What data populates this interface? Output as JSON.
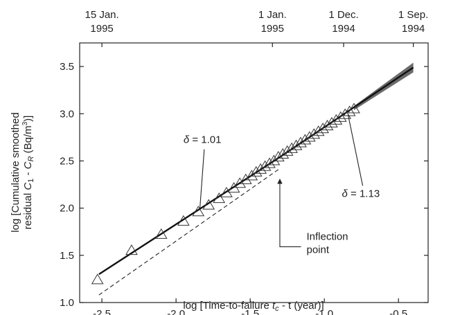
{
  "chart_data": {
    "type": "scatter",
    "xlabel": "log [Time-to-failure tᴄ - t (year)]",
    "xlabel_parts": {
      "pre": "log [Time-to-failure ",
      "t": "t",
      "c": "c",
      "post": " - t (year)]"
    },
    "ylabel_line1": "log [Cumulative smoothed",
    "ylabel_line2_parts": {
      "pre": "residual ",
      "c1": "C",
      "s1": "1",
      "mid": " - ",
      "cr": "C",
      "sr": "R",
      "post1": " (Bq/m",
      "sup": "3",
      "post2": ")]"
    },
    "xlim": [
      -2.65,
      -0.3
    ],
    "ylim": [
      1.0,
      3.75
    ],
    "x_ticks": [
      -2.5,
      -2.0,
      -1.5,
      -1.0,
      -0.5
    ],
    "x_tick_labels": [
      "-2.5",
      "-2.0",
      "-1.5",
      "-1.0",
      "-0.5"
    ],
    "y_ticks": [
      1.0,
      1.5,
      2.0,
      2.5,
      3.0,
      3.5
    ],
    "y_tick_labels": [
      "1.0",
      "1.5",
      "2.0",
      "2.5",
      "3.0",
      "3.5"
    ],
    "top_axis": [
      {
        "x": -2.5,
        "line1": "15 Jan.",
        "line2": "1995"
      },
      {
        "x": -1.35,
        "line1": "1 Jan.",
        "line2": "1995"
      },
      {
        "x": -0.87,
        "line1": "1 Dec.",
        "line2": "1994"
      },
      {
        "x": -0.4,
        "line1": "1 Sep.",
        "line2": "1994"
      }
    ],
    "series": [
      {
        "marker": "open-triangle",
        "x": [
          -2.53,
          -2.3,
          -2.1,
          -1.95,
          -1.85,
          -1.78,
          -1.71,
          -1.66,
          -1.61,
          -1.57,
          -1.53,
          -1.49,
          -1.46,
          -1.43,
          -1.4,
          -1.37,
          -1.34,
          -1.31,
          -1.28,
          -1.25,
          -1.22,
          -1.19,
          -1.16,
          -1.13,
          -1.1,
          -1.07,
          -1.04,
          -1.01,
          -0.98,
          -0.95,
          -0.92,
          -0.89,
          -0.86,
          -0.83,
          -0.8
        ],
        "y": [
          1.24,
          1.55,
          1.72,
          1.86,
          1.96,
          2.03,
          2.1,
          2.16,
          2.21,
          2.26,
          2.3,
          2.34,
          2.38,
          2.41,
          2.44,
          2.47,
          2.5,
          2.54,
          2.57,
          2.6,
          2.63,
          2.66,
          2.69,
          2.72,
          2.75,
          2.78,
          2.81,
          2.84,
          2.87,
          2.9,
          2.93,
          2.96,
          2.99,
          3.02,
          3.05
        ]
      }
    ],
    "fit_line": {
      "style": "solid-black",
      "x": [
        -2.52,
        -1.32,
        -0.4
      ],
      "y": [
        1.3,
        2.52,
        3.49
      ]
    },
    "fit_band": {
      "color": "#6b6b6b",
      "x_start": -0.8,
      "x_end": -0.4,
      "y_start": 3.06,
      "y_end": 3.49
    },
    "dashed_line": {
      "style": "dashed",
      "x": [
        -2.52,
        -1.3
      ],
      "y": [
        1.08,
        2.42
      ]
    },
    "annotations": [
      {
        "label": "δ = 1.01",
        "delta": "δ",
        "value": " = 1.01",
        "text_x": -1.95,
        "text_y": 2.69,
        "arrow_to_x": -1.84,
        "arrow_to_y": 1.98
      },
      {
        "label": "δ = 1.13",
        "delta": "δ",
        "value": " = 1.13",
        "text_x": -0.76,
        "text_y": 2.12,
        "arrow_to_x": -0.84,
        "arrow_to_y": 2.99
      },
      {
        "label_line1": "Inflection",
        "label_line2": "point",
        "text_x": -1.12,
        "text_y": 1.62,
        "arrow_to_x": -1.3,
        "arrow_to_y": 2.38
      }
    ]
  }
}
